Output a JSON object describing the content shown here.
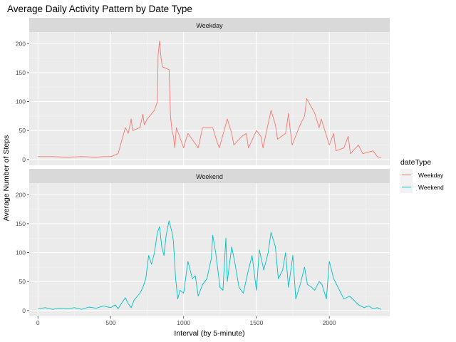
{
  "chart_data": {
    "type": "line",
    "title": "Average Daily Activity Pattern by Date Type",
    "xlabel": "Interval (by 5-minute)",
    "ylabel": "Average Number of Steps",
    "xlim": [
      -60,
      2415
    ],
    "ylim": [
      -10,
      220
    ],
    "x_ticks": [
      0,
      500,
      1000,
      1500,
      2000
    ],
    "y_ticks": [
      0,
      50,
      100,
      150,
      200
    ],
    "grid": true,
    "legend": {
      "title": "dateType",
      "position": "right"
    },
    "panels": [
      {
        "label": "Weekday",
        "series": {
          "name": "Weekday",
          "color": "#F8766D",
          "x": [
            0,
            100,
            200,
            300,
            400,
            450,
            500,
            530,
            550,
            600,
            620,
            640,
            650,
            700,
            720,
            730,
            750,
            800,
            820,
            825,
            835,
            845,
            855,
            900,
            910,
            920,
            930,
            940,
            950,
            1000,
            1010,
            1030,
            1100,
            1130,
            1200,
            1230,
            1245,
            1300,
            1330,
            1345,
            1400,
            1430,
            1445,
            1500,
            1530,
            1545,
            1600,
            1630,
            1645,
            1700,
            1720,
            1730,
            1745,
            1800,
            1830,
            1845,
            1900,
            1930,
            1945,
            2000,
            2030,
            2045,
            2100,
            2130,
            2145,
            2200,
            2230,
            2300,
            2330,
            2355
          ],
          "y": [
            5,
            5,
            4,
            5,
            4,
            5,
            5,
            8,
            10,
            55,
            45,
            70,
            50,
            55,
            78,
            60,
            70,
            85,
            100,
            180,
            205,
            175,
            160,
            155,
            75,
            50,
            40,
            20,
            55,
            20,
            30,
            45,
            20,
            55,
            55,
            30,
            20,
            70,
            45,
            25,
            40,
            45,
            20,
            50,
            40,
            20,
            85,
            60,
            35,
            45,
            80,
            55,
            25,
            60,
            75,
            105,
            80,
            55,
            70,
            25,
            45,
            15,
            20,
            40,
            10,
            25,
            10,
            15,
            5,
            3
          ]
        }
      },
      {
        "label": "Weekend",
        "series": {
          "name": "Weekend",
          "color": "#00BFC4",
          "x": [
            0,
            50,
            100,
            150,
            200,
            250,
            300,
            350,
            400,
            450,
            500,
            530,
            550,
            580,
            600,
            620,
            640,
            660,
            700,
            720,
            740,
            760,
            780,
            800,
            820,
            835,
            850,
            865,
            880,
            900,
            920,
            930,
            945,
            960,
            975,
            1000,
            1030,
            1060,
            1080,
            1100,
            1130,
            1160,
            1190,
            1200,
            1220,
            1250,
            1270,
            1290,
            1300,
            1330,
            1350,
            1380,
            1410,
            1440,
            1470,
            1500,
            1520,
            1550,
            1580,
            1600,
            1630,
            1650,
            1680,
            1700,
            1720,
            1750,
            1770,
            1800,
            1830,
            1850,
            1880,
            1900,
            1930,
            1950,
            1980,
            2000,
            2030,
            2060,
            2100,
            2140,
            2200,
            2240,
            2270,
            2300,
            2330,
            2355
          ],
          "y": [
            3,
            5,
            2,
            4,
            3,
            5,
            2,
            6,
            4,
            8,
            5,
            10,
            3,
            15,
            22,
            12,
            5,
            18,
            30,
            40,
            55,
            95,
            80,
            100,
            135,
            145,
            110,
            95,
            130,
            155,
            135,
            120,
            55,
            20,
            35,
            30,
            85,
            55,
            60,
            25,
            45,
            55,
            90,
            130,
            100,
            40,
            35,
            125,
            50,
            110,
            85,
            40,
            30,
            65,
            95,
            35,
            105,
            70,
            100,
            135,
            110,
            55,
            70,
            100,
            40,
            95,
            20,
            45,
            75,
            45,
            40,
            35,
            50,
            45,
            20,
            85,
            55,
            40,
            20,
            25,
            10,
            5,
            8,
            3,
            5,
            2
          ]
        }
      }
    ]
  }
}
